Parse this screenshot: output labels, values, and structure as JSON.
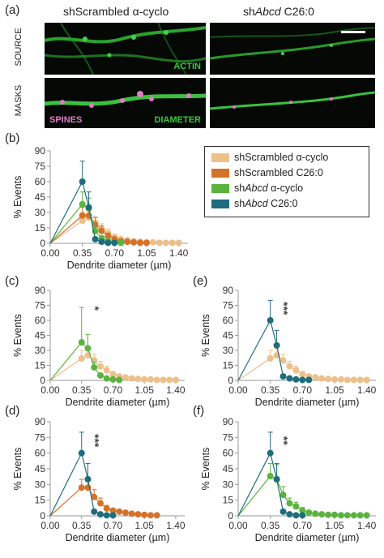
{
  "figure": {
    "panel_labels": [
      "(a)",
      "(b)",
      "(c)",
      "(d)",
      "(e)",
      "(f)"
    ],
    "column_headers": [
      {
        "prefix": "shScrambled ",
        "italic": "",
        "suffix": "α-cyclo"
      },
      {
        "prefix": "sh",
        "italic": "Abcd",
        "suffix": " C26:0"
      }
    ],
    "row_labels": [
      "SOURCE",
      "MASKS"
    ],
    "overlay_labels": {
      "actin": "ACTIN",
      "spines": "SPINES",
      "diameter": "DIAMETER"
    },
    "colors": {
      "scr_cyclo": "#ecc08a",
      "scr_c26": "#d4722a",
      "abcd_cyclo": "#5bb33e",
      "abcd_c26": "#1f6d7c",
      "axis": "#9a9a9a",
      "actin_green": "#36c83a",
      "spine_pink": "#e27ac8"
    }
  },
  "legend": [
    {
      "label_prefix": "shScrambled ",
      "label_italic": "",
      "label_suffix": "α-cyclo",
      "color_key": "scr_cyclo"
    },
    {
      "label_prefix": "shScrambled ",
      "label_italic": "",
      "label_suffix": "C26:0",
      "color_key": "scr_c26"
    },
    {
      "label_prefix": "sh",
      "label_italic": "Abcd",
      "label_suffix": " α-cyclo",
      "color_key": "abcd_cyclo"
    },
    {
      "label_prefix": "sh",
      "label_italic": "Abcd",
      "label_suffix": " C26:0",
      "color_key": "abcd_c26"
    }
  ],
  "chart_data": [
    {
      "panel": "(b)",
      "type": "line",
      "xlabel": "Dendrite diameter (µm)",
      "ylabel": "% Events",
      "xlim": [
        0,
        1.5
      ],
      "ylim": [
        0,
        90
      ],
      "xticks": [
        0.0,
        0.35,
        0.7,
        1.05,
        1.4
      ],
      "xtick_labels": [
        "0.00",
        "0.35",
        "0.70",
        "1.05",
        "1.40"
      ],
      "yticks": [
        0,
        15,
        30,
        45,
        60,
        75,
        90
      ],
      "ytick_labels": [
        "0",
        "15",
        "30",
        "45",
        "60",
        "75",
        "90"
      ],
      "annotation": "",
      "series": [
        {
          "key": "scr_cyclo",
          "x": [
            0.35,
            0.42,
            0.49,
            0.56,
            0.63,
            0.7,
            0.77,
            0.84,
            0.91,
            0.98,
            1.05,
            1.12,
            1.19,
            1.26,
            1.33,
            1.4
          ],
          "y": [
            22,
            25,
            20,
            14,
            10,
            6,
            4,
            3,
            2,
            1.5,
            1,
            1,
            0.5,
            0.5,
            0.5,
            0.5
          ],
          "err": [
            8,
            7,
            6,
            5,
            4,
            3,
            2,
            2,
            1,
            1,
            1,
            1,
            0.5,
            0.5,
            0.5,
            0.5
          ]
        },
        {
          "key": "scr_c26",
          "x": [
            0.35,
            0.42,
            0.49,
            0.56,
            0.63,
            0.7,
            0.77,
            0.84,
            0.91,
            0.98,
            1.05
          ],
          "y": [
            27,
            27,
            18,
            12,
            7,
            4,
            2,
            1.5,
            1,
            0.5,
            0.5
          ],
          "err": [
            8,
            10,
            7,
            5,
            3,
            2,
            1,
            1,
            0.5,
            0.5,
            0.5
          ]
        },
        {
          "key": "abcd_cyclo",
          "x": [
            0.35,
            0.42,
            0.49,
            0.56,
            0.63,
            0.7,
            0.77
          ],
          "y": [
            38,
            34,
            12,
            5,
            2,
            1,
            0.5
          ],
          "err": [
            12,
            10,
            5,
            2,
            1,
            0.5,
            0.5
          ]
        },
        {
          "key": "abcd_c26",
          "x": [
            0.35,
            0.42,
            0.49,
            0.56,
            0.63,
            0.7
          ],
          "y": [
            60,
            35,
            4,
            1.5,
            0.5,
            0.5
          ],
          "err": [
            20,
            15,
            2,
            1,
            0.5,
            0.5
          ]
        }
      ]
    },
    {
      "panel": "(c)",
      "type": "line",
      "xlabel": "Dendrite diameter (µm)",
      "ylabel": "% Events",
      "xlim": [
        0,
        1.5
      ],
      "ylim": [
        0,
        90
      ],
      "xticks": [
        0.0,
        0.35,
        0.7,
        1.05,
        1.4
      ],
      "xtick_labels": [
        "0.00",
        "0.35",
        "0.70",
        "1.05",
        "1.40"
      ],
      "yticks": [
        0,
        15,
        30,
        45,
        60,
        75,
        90
      ],
      "ytick_labels": [
        "0",
        "15",
        "30",
        "45",
        "60",
        "75",
        "90"
      ],
      "annotation": "*",
      "series": [
        {
          "key": "scr_cyclo",
          "x": [
            0.35,
            0.42,
            0.49,
            0.56,
            0.63,
            0.7,
            0.77,
            0.84,
            0.91,
            0.98,
            1.05,
            1.12,
            1.19,
            1.26,
            1.33,
            1.4
          ],
          "y": [
            22,
            25,
            20,
            14,
            10,
            6,
            4,
            3,
            2,
            1.5,
            1,
            1,
            0.5,
            0.5,
            0.5,
            0.5
          ],
          "err": [
            8,
            7,
            6,
            5,
            4,
            3,
            2,
            2,
            1,
            1,
            1,
            1,
            0.5,
            0.5,
            0.5,
            0.5
          ]
        },
        {
          "key": "abcd_cyclo",
          "x": [
            0.35,
            0.42,
            0.49,
            0.56,
            0.63,
            0.7,
            0.77
          ],
          "y": [
            38,
            32,
            13,
            5,
            2,
            1,
            0.5
          ],
          "err": [
            35,
            14,
            5,
            2,
            1,
            0.5,
            0.5
          ]
        }
      ]
    },
    {
      "panel": "(d)",
      "type": "line",
      "xlabel": "Dendrite diameter (µm)",
      "ylabel": "% Events",
      "xlim": [
        0,
        1.5
      ],
      "ylim": [
        0,
        90
      ],
      "xticks": [
        0.0,
        0.35,
        0.7,
        1.05,
        1.4
      ],
      "xtick_labels": [
        "0.00",
        "0.35",
        "0.70",
        "1.05",
        "1.40"
      ],
      "yticks": [
        0,
        15,
        30,
        45,
        60,
        75,
        90
      ],
      "ytick_labels": [
        "0",
        "15",
        "30",
        "45",
        "60",
        "75",
        "90"
      ],
      "annotation": "***",
      "series": [
        {
          "key": "scr_c26",
          "x": [
            0.35,
            0.42,
            0.49,
            0.56,
            0.63,
            0.7,
            0.77,
            0.84,
            0.91,
            0.98,
            1.05,
            1.12,
            1.19
          ],
          "y": [
            27,
            27,
            18,
            12,
            7,
            5,
            4,
            3,
            2,
            1.5,
            1,
            0.5,
            0.5
          ],
          "err": [
            8,
            10,
            7,
            5,
            3,
            2,
            2,
            1,
            1,
            0.5,
            0.5,
            0.5,
            0.5
          ]
        },
        {
          "key": "abcd_c26",
          "x": [
            0.35,
            0.42,
            0.49,
            0.56,
            0.63,
            0.7
          ],
          "y": [
            60,
            35,
            4,
            1.5,
            0.5,
            0.5
          ],
          "err": [
            20,
            15,
            2,
            1,
            0.5,
            0.5
          ]
        }
      ]
    },
    {
      "panel": "(e)",
      "type": "line",
      "xlabel": "Dendrite diameter (µm)",
      "ylabel": "% Events",
      "xlim": [
        0,
        1.5
      ],
      "ylim": [
        0,
        90
      ],
      "xticks": [
        0.0,
        0.35,
        0.7,
        1.05,
        1.4
      ],
      "xtick_labels": [
        "0.00",
        "0.35",
        "0.70",
        "1.05",
        "1.40"
      ],
      "yticks": [
        0,
        15,
        30,
        45,
        60,
        75,
        90
      ],
      "ytick_labels": [
        "0",
        "15",
        "30",
        "45",
        "60",
        "75",
        "90"
      ],
      "annotation": "***",
      "series": [
        {
          "key": "scr_cyclo",
          "x": [
            0.35,
            0.42,
            0.49,
            0.56,
            0.63,
            0.7,
            0.77,
            0.84,
            0.91,
            0.98,
            1.05,
            1.12,
            1.19,
            1.26,
            1.33,
            1.4
          ],
          "y": [
            22,
            25,
            20,
            14,
            10,
            6,
            4,
            3,
            2,
            1.5,
            1,
            1,
            0.5,
            0.5,
            0.5,
            0.5
          ],
          "err": [
            8,
            7,
            6,
            5,
            4,
            3,
            2,
            2,
            1,
            1,
            1,
            1,
            0.5,
            0.5,
            0.5,
            0.5
          ]
        },
        {
          "key": "abcd_c26",
          "x": [
            0.35,
            0.42,
            0.49,
            0.56,
            0.63,
            0.7,
            0.77
          ],
          "y": [
            60,
            35,
            4,
            2,
            1,
            0.5,
            0.5
          ],
          "err": [
            20,
            15,
            2,
            1,
            0.5,
            0.5,
            0.5
          ]
        }
      ]
    },
    {
      "panel": "(f)",
      "type": "line",
      "xlabel": "Dendrite diameter (µm)",
      "ylabel": "% Events",
      "xlim": [
        0,
        1.5
      ],
      "ylim": [
        0,
        90
      ],
      "xticks": [
        0.0,
        0.35,
        0.7,
        1.05,
        1.4
      ],
      "xtick_labels": [
        "0.00",
        "0.35",
        "0.70",
        "1.05",
        "1.40"
      ],
      "yticks": [
        0,
        15,
        30,
        45,
        60,
        75,
        90
      ],
      "ytick_labels": [
        "0",
        "15",
        "30",
        "45",
        "60",
        "75",
        "90"
      ],
      "annotation": "**",
      "series": [
        {
          "key": "abcd_cyclo",
          "x": [
            0.35,
            0.42,
            0.49,
            0.56,
            0.63,
            0.7,
            0.77,
            0.84,
            0.91,
            0.98,
            1.05,
            1.12,
            1.19,
            1.26,
            1.33,
            1.4
          ],
          "y": [
            38,
            35,
            20,
            12,
            9,
            5,
            3,
            2,
            1.5,
            1,
            1,
            0.5,
            0.5,
            0.5,
            0.5,
            0.5
          ],
          "err": [
            12,
            14,
            8,
            5,
            4,
            3,
            2,
            1,
            1,
            1,
            0.5,
            0.5,
            0.5,
            0.5,
            0.5,
            0.5
          ]
        },
        {
          "key": "abcd_c26",
          "x": [
            0.35,
            0.42,
            0.49,
            0.56,
            0.63,
            0.7
          ],
          "y": [
            60,
            35,
            4,
            1.5,
            0.5,
            0.5
          ],
          "err": [
            20,
            15,
            2,
            1,
            0.5,
            0.5
          ]
        }
      ]
    }
  ]
}
